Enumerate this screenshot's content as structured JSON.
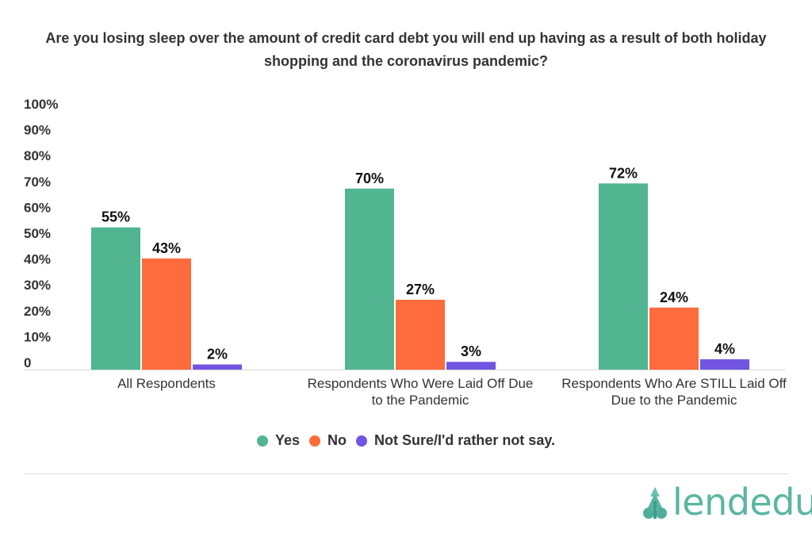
{
  "chart_data": {
    "type": "bar",
    "title": "Are you losing sleep over the amount of credit card debt you will end up having as a result of both holiday shopping and the coronavirus pandemic?",
    "categories": [
      [
        "All Respondents"
      ],
      [
        "Respondents Who Were Laid Off Due",
        "to the Pandemic"
      ],
      [
        "Respondents Who Are STILL Laid Off",
        "Due to the Pandemic"
      ]
    ],
    "series": [
      {
        "name": "Yes",
        "color": "#51b592",
        "values": [
          55,
          70,
          72
        ]
      },
      {
        "name": "No",
        "color": "#fe6b3c",
        "values": [
          43,
          27,
          24
        ]
      },
      {
        "name": "Not Sure/I'd rather not say.",
        "color": "#7155e0",
        "values": [
          2,
          3,
          4
        ]
      }
    ],
    "data_labels": [
      [
        "55%",
        "70%",
        "72%"
      ],
      [
        "43%",
        "27%",
        "24%"
      ],
      [
        "2%",
        "3%",
        "4%"
      ]
    ],
    "y_ticks": [
      "0",
      "10%",
      "20%",
      "30%",
      "40%",
      "50%",
      "60%",
      "70%",
      "80%",
      "90%",
      "100%"
    ],
    "ylim": [
      0,
      100
    ],
    "xlabel": "",
    "ylabel": "",
    "grid": false,
    "legend_position": "bottom"
  },
  "brand": {
    "logo_text": "lendedu",
    "logo_icon": "tree-icon",
    "logo_color": "#59b6a2"
  }
}
